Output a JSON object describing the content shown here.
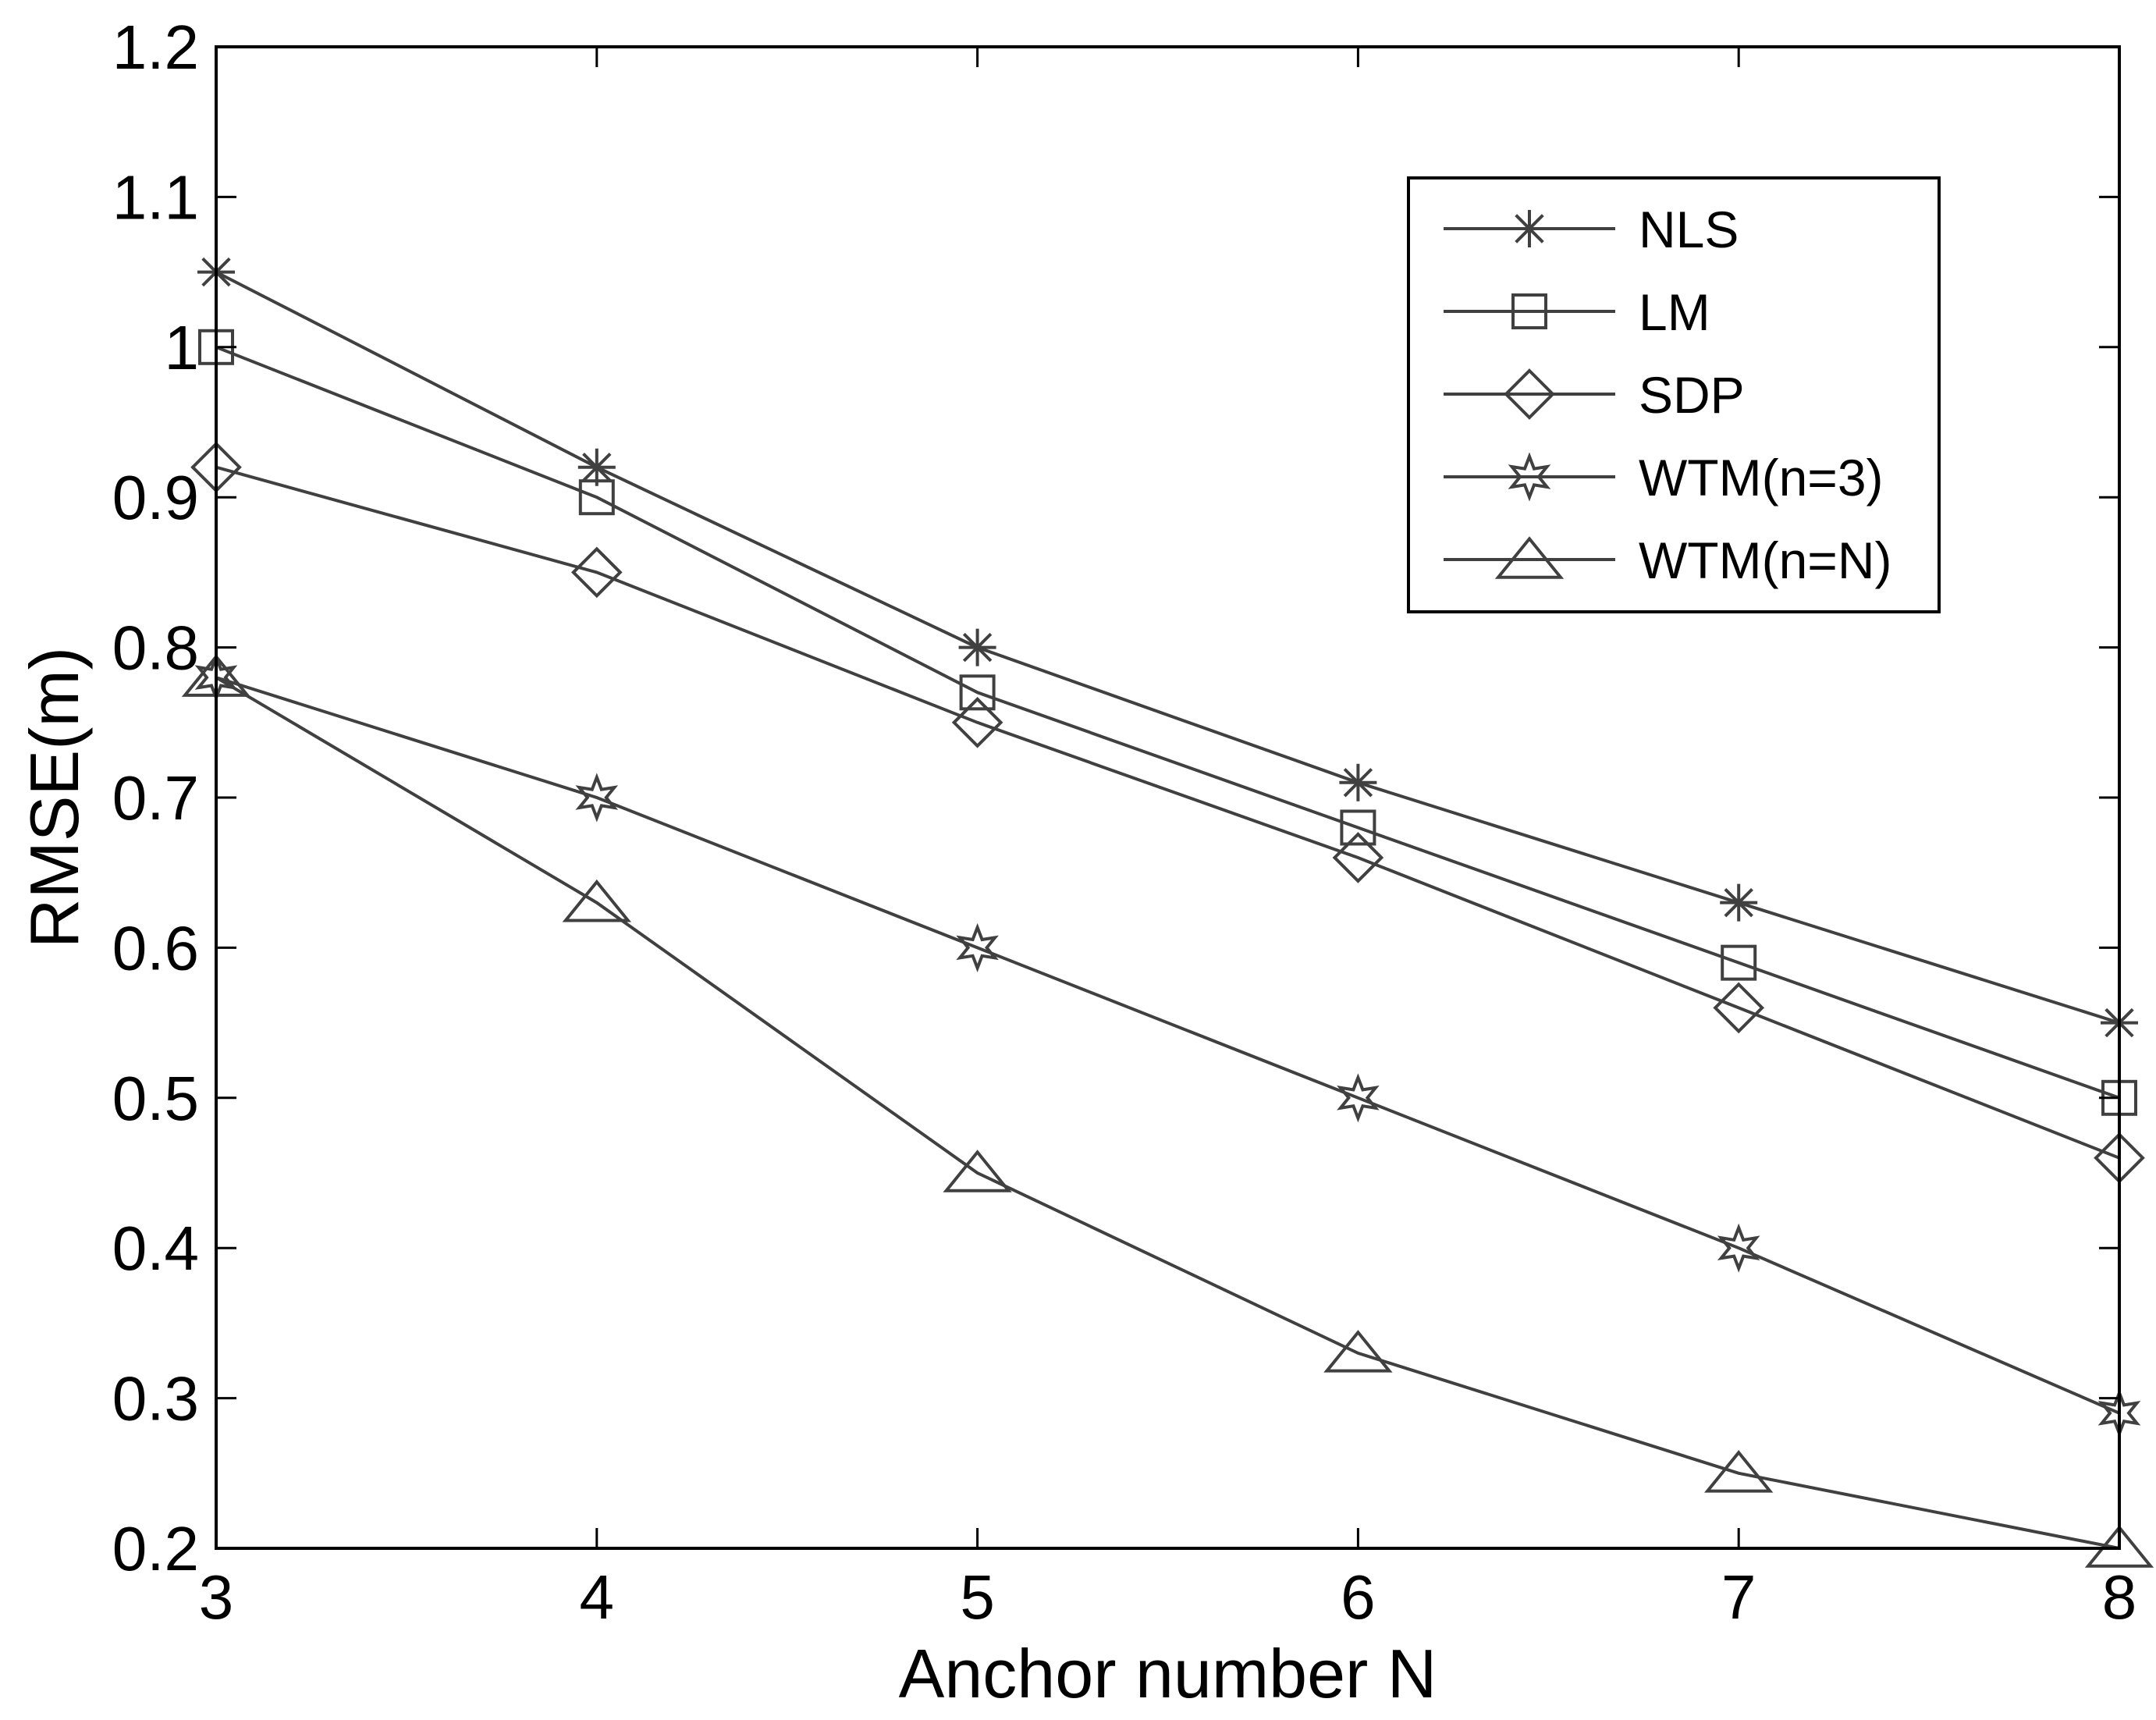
{
  "chart_data": {
    "type": "line",
    "title": "",
    "xlabel": "Anchor number N",
    "ylabel": "RMSE(m)",
    "x": [
      3,
      4,
      5,
      6,
      7,
      8
    ],
    "xlim": [
      3,
      8
    ],
    "ylim": [
      0.2,
      1.2
    ],
    "xticks": [
      "3",
      "4",
      "5",
      "6",
      "7",
      "8"
    ],
    "yticks": [
      "0.2",
      "0.3",
      "0.4",
      "0.5",
      "0.6",
      "0.7",
      "0.8",
      "0.9",
      "1",
      "1.1",
      "1.2"
    ],
    "grid": false,
    "legend_position": "top-right",
    "line_color": "#404040",
    "series": [
      {
        "name": "NLS",
        "marker": "asterisk",
        "values": [
          1.05,
          0.92,
          0.8,
          0.71,
          0.63,
          0.55
        ]
      },
      {
        "name": "LM",
        "marker": "square",
        "values": [
          1.0,
          0.9,
          0.77,
          0.68,
          0.59,
          0.5
        ]
      },
      {
        "name": "SDP",
        "marker": "diamond",
        "values": [
          0.92,
          0.85,
          0.75,
          0.66,
          0.56,
          0.46
        ]
      },
      {
        "name": "WTM(n=3)",
        "marker": "star",
        "values": [
          0.78,
          0.7,
          0.6,
          0.5,
          0.4,
          0.29
        ]
      },
      {
        "name": "WTM(n=N)",
        "marker": "triangle",
        "values": [
          0.78,
          0.63,
          0.45,
          0.33,
          0.25,
          0.2
        ]
      }
    ]
  }
}
